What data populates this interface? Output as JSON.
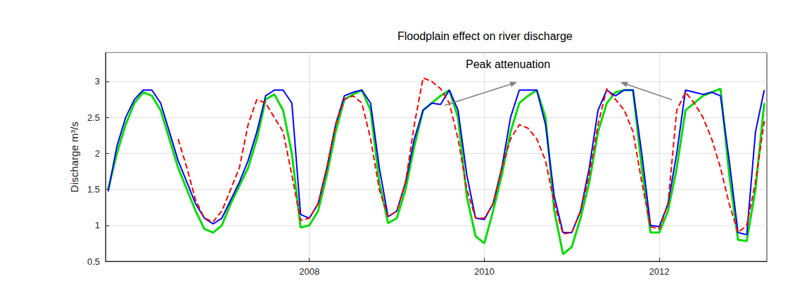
{
  "chart_data": {
    "type": "line",
    "title": "Floodplain effect on river discharge",
    "y_label": "Discharge m³/s",
    "annotations": [
      "Peak attenuation"
    ],
    "x": [
      2005.7,
      2005.8,
      2005.9,
      2006.0,
      2006.1,
      2006.2,
      2006.3,
      2006.4,
      2006.5,
      2006.6,
      2006.7,
      2006.8,
      2006.9,
      2007.0,
      2007.1,
      2007.2,
      2007.3,
      2007.4,
      2007.5,
      2007.6,
      2007.7,
      2007.8,
      2007.9,
      2008.0,
      2008.1,
      2008.2,
      2008.3,
      2008.4,
      2008.5,
      2008.6,
      2008.7,
      2008.8,
      2008.9,
      2009.0,
      2009.1,
      2009.2,
      2009.3,
      2009.4,
      2009.5,
      2009.6,
      2009.7,
      2009.8,
      2009.9,
      2010.0,
      2010.1,
      2010.2,
      2010.3,
      2010.4,
      2010.5,
      2010.6,
      2010.7,
      2010.8,
      2010.9,
      2011.0,
      2011.1,
      2011.2,
      2011.3,
      2011.4,
      2011.5,
      2011.6,
      2011.7,
      2011.8,
      2011.9,
      2012.0,
      2012.1,
      2012.2,
      2012.3,
      2012.4,
      2012.5,
      2012.6,
      2012.7,
      2012.8,
      2012.9,
      2013.0,
      2013.1,
      2013.2
    ],
    "series": [
      {
        "color": "#ff0000",
        "line_style": "dashed",
        "values": [
          null,
          null,
          null,
          null,
          null,
          null,
          null,
          null,
          2.2,
          1.8,
          1.35,
          1.1,
          1.05,
          1.2,
          1.5,
          1.8,
          2.4,
          2.75,
          2.7,
          2.5,
          2.3,
          1.7,
          1.07,
          1.1,
          1.3,
          1.8,
          2.4,
          2.75,
          2.8,
          2.7,
          2.2,
          1.5,
          1.12,
          1.2,
          1.6,
          2.4,
          3.05,
          3.0,
          2.9,
          2.7,
          2.2,
          1.5,
          1.1,
          1.1,
          1.3,
          1.8,
          2.2,
          2.4,
          2.35,
          2.2,
          1.9,
          1.3,
          0.88,
          0.9,
          1.2,
          1.7,
          2.4,
          2.9,
          2.75,
          2.6,
          2.3,
          1.6,
          0.98,
          0.95,
          1.3,
          2.6,
          2.85,
          2.7,
          2.5,
          2.2,
          1.8,
          1.3,
          0.9,
          1.0,
          1.6,
          2.45
        ]
      },
      {
        "color": "#00dd00",
        "line_style": "solid",
        "values": [
          1.5,
          2.0,
          2.4,
          2.7,
          2.85,
          2.8,
          2.6,
          2.2,
          1.8,
          1.5,
          1.2,
          0.95,
          0.9,
          1.0,
          1.3,
          1.55,
          1.8,
          2.2,
          2.75,
          2.82,
          2.6,
          2.0,
          0.97,
          1.0,
          1.2,
          1.7,
          2.3,
          2.75,
          2.82,
          2.88,
          2.6,
          1.6,
          1.03,
          1.1,
          1.5,
          2.1,
          2.6,
          2.7,
          2.8,
          2.88,
          2.5,
          1.4,
          0.85,
          0.75,
          1.2,
          1.7,
          2.3,
          2.7,
          2.8,
          2.88,
          2.5,
          1.2,
          0.6,
          0.7,
          1.1,
          1.6,
          2.3,
          2.7,
          2.85,
          2.88,
          2.88,
          1.8,
          0.9,
          0.9,
          1.2,
          1.8,
          2.6,
          2.7,
          2.8,
          2.85,
          2.9,
          1.7,
          0.8,
          0.78,
          1.5,
          2.7
        ]
      },
      {
        "color": "#0000ff",
        "line_style": "solid",
        "values": [
          1.47,
          2.1,
          2.5,
          2.75,
          2.88,
          2.88,
          2.7,
          2.3,
          1.9,
          1.6,
          1.3,
          1.1,
          1.02,
          1.1,
          1.35,
          1.6,
          1.9,
          2.3,
          2.8,
          2.88,
          2.88,
          2.7,
          1.15,
          1.1,
          1.3,
          1.8,
          2.4,
          2.8,
          2.85,
          2.88,
          2.7,
          1.8,
          1.12,
          1.2,
          1.6,
          2.2,
          2.6,
          2.7,
          2.68,
          2.88,
          2.6,
          1.7,
          1.1,
          1.08,
          1.3,
          1.8,
          2.5,
          2.88,
          2.88,
          2.88,
          2.4,
          1.4,
          0.9,
          0.9,
          1.2,
          1.8,
          2.6,
          2.88,
          2.8,
          2.88,
          2.88,
          2.0,
          1.0,
          0.98,
          1.3,
          2.0,
          2.88,
          2.85,
          2.82,
          2.85,
          2.8,
          1.9,
          0.9,
          0.87,
          2.3,
          2.88
        ]
      }
    ],
    "xlim": [
      2005.67,
      2013.23
    ],
    "xticks": [
      2008,
      2010,
      2012
    ],
    "ylim": [
      0.5,
      3.4
    ],
    "yticks": [
      0.5,
      1,
      1.5,
      2,
      2.5,
      3
    ],
    "grid": true
  }
}
